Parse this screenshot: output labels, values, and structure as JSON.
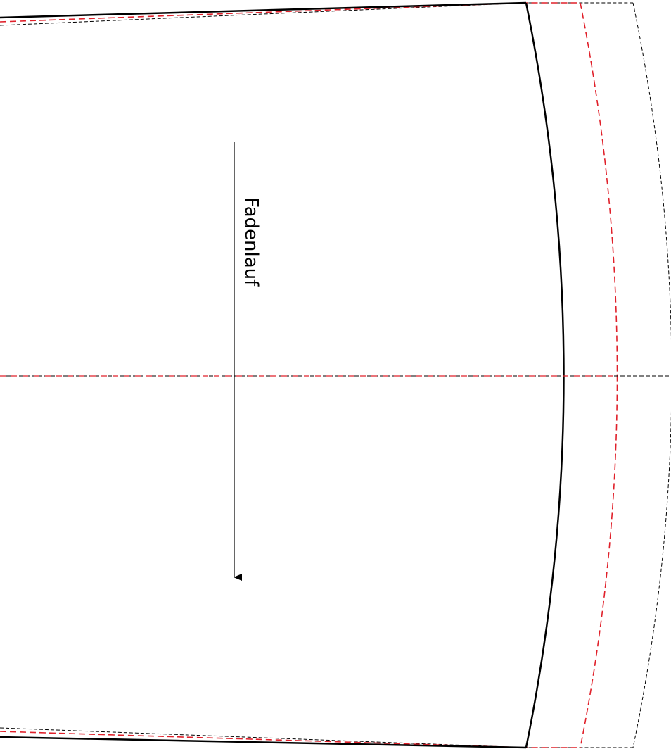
{
  "grainline": {
    "label": "Fadenlauf"
  },
  "colors": {
    "cut_line": "#000000",
    "stitch_line": "#e0202a",
    "seam_allowance_line": "#000000",
    "background": "#ffffff"
  }
}
